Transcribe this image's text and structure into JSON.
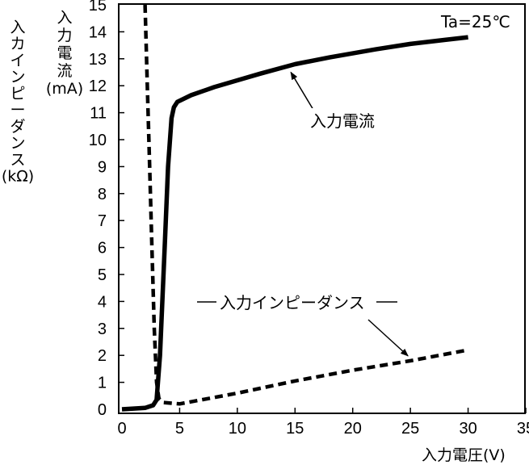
{
  "chart_data": {
    "type": "line",
    "title": "",
    "xlabel": "入力電圧(V)",
    "ylabel_primary": [
      "入",
      "力",
      "電",
      "流",
      "(mA)"
    ],
    "ylabel_secondary": [
      "入",
      "カ",
      "イ",
      "ン",
      "ピ",
      "ー",
      "ダ",
      "ン",
      "ス",
      "(kΩ)"
    ],
    "xlim": [
      0,
      35
    ],
    "ylim": [
      0,
      15
    ],
    "xticks": [
      "0",
      "5",
      "10",
      "15",
      "20",
      "25",
      "30",
      "35"
    ],
    "yticks": [
      "0",
      "1",
      "2",
      "3",
      "4",
      "5",
      "6",
      "7",
      "8",
      "9",
      "10",
      "11",
      "12",
      "13",
      "14",
      "15"
    ],
    "grid": false,
    "condition": "Ta=25℃",
    "series": [
      {
        "name": "入力電流",
        "style": "solid",
        "x": [
          0,
          2,
          2.7,
          3.0,
          3.3,
          3.7,
          4.0,
          4.3,
          4.5,
          4.8,
          6,
          8,
          10,
          12,
          15,
          18,
          20,
          22,
          25,
          28,
          30
        ],
        "y": [
          0,
          0.05,
          0.15,
          0.35,
          2,
          6,
          9,
          10.8,
          11.2,
          11.4,
          11.65,
          11.95,
          12.2,
          12.45,
          12.8,
          13.05,
          13.2,
          13.35,
          13.55,
          13.7,
          13.8
        ]
      },
      {
        "name": "入力インピーダンス",
        "style": "dashed",
        "x": [
          2.0,
          2.2,
          2.4,
          2.6,
          2.8,
          3.0,
          3.2,
          3.6,
          5,
          10,
          15,
          20,
          25,
          30
        ],
        "y": [
          15,
          12,
          9,
          6,
          3,
          1,
          0.4,
          0.25,
          0.2,
          0.6,
          1.05,
          1.45,
          1.8,
          2.2
        ]
      }
    ],
    "annotations": [
      {
        "text": "入力電流",
        "target_series": "入力電流",
        "point": [
          14.5,
          12.65
        ]
      },
      {
        "text": "入力インピーダンス",
        "target_series": "入力インピーダンス",
        "point": [
          25,
          1.8
        ]
      }
    ]
  }
}
